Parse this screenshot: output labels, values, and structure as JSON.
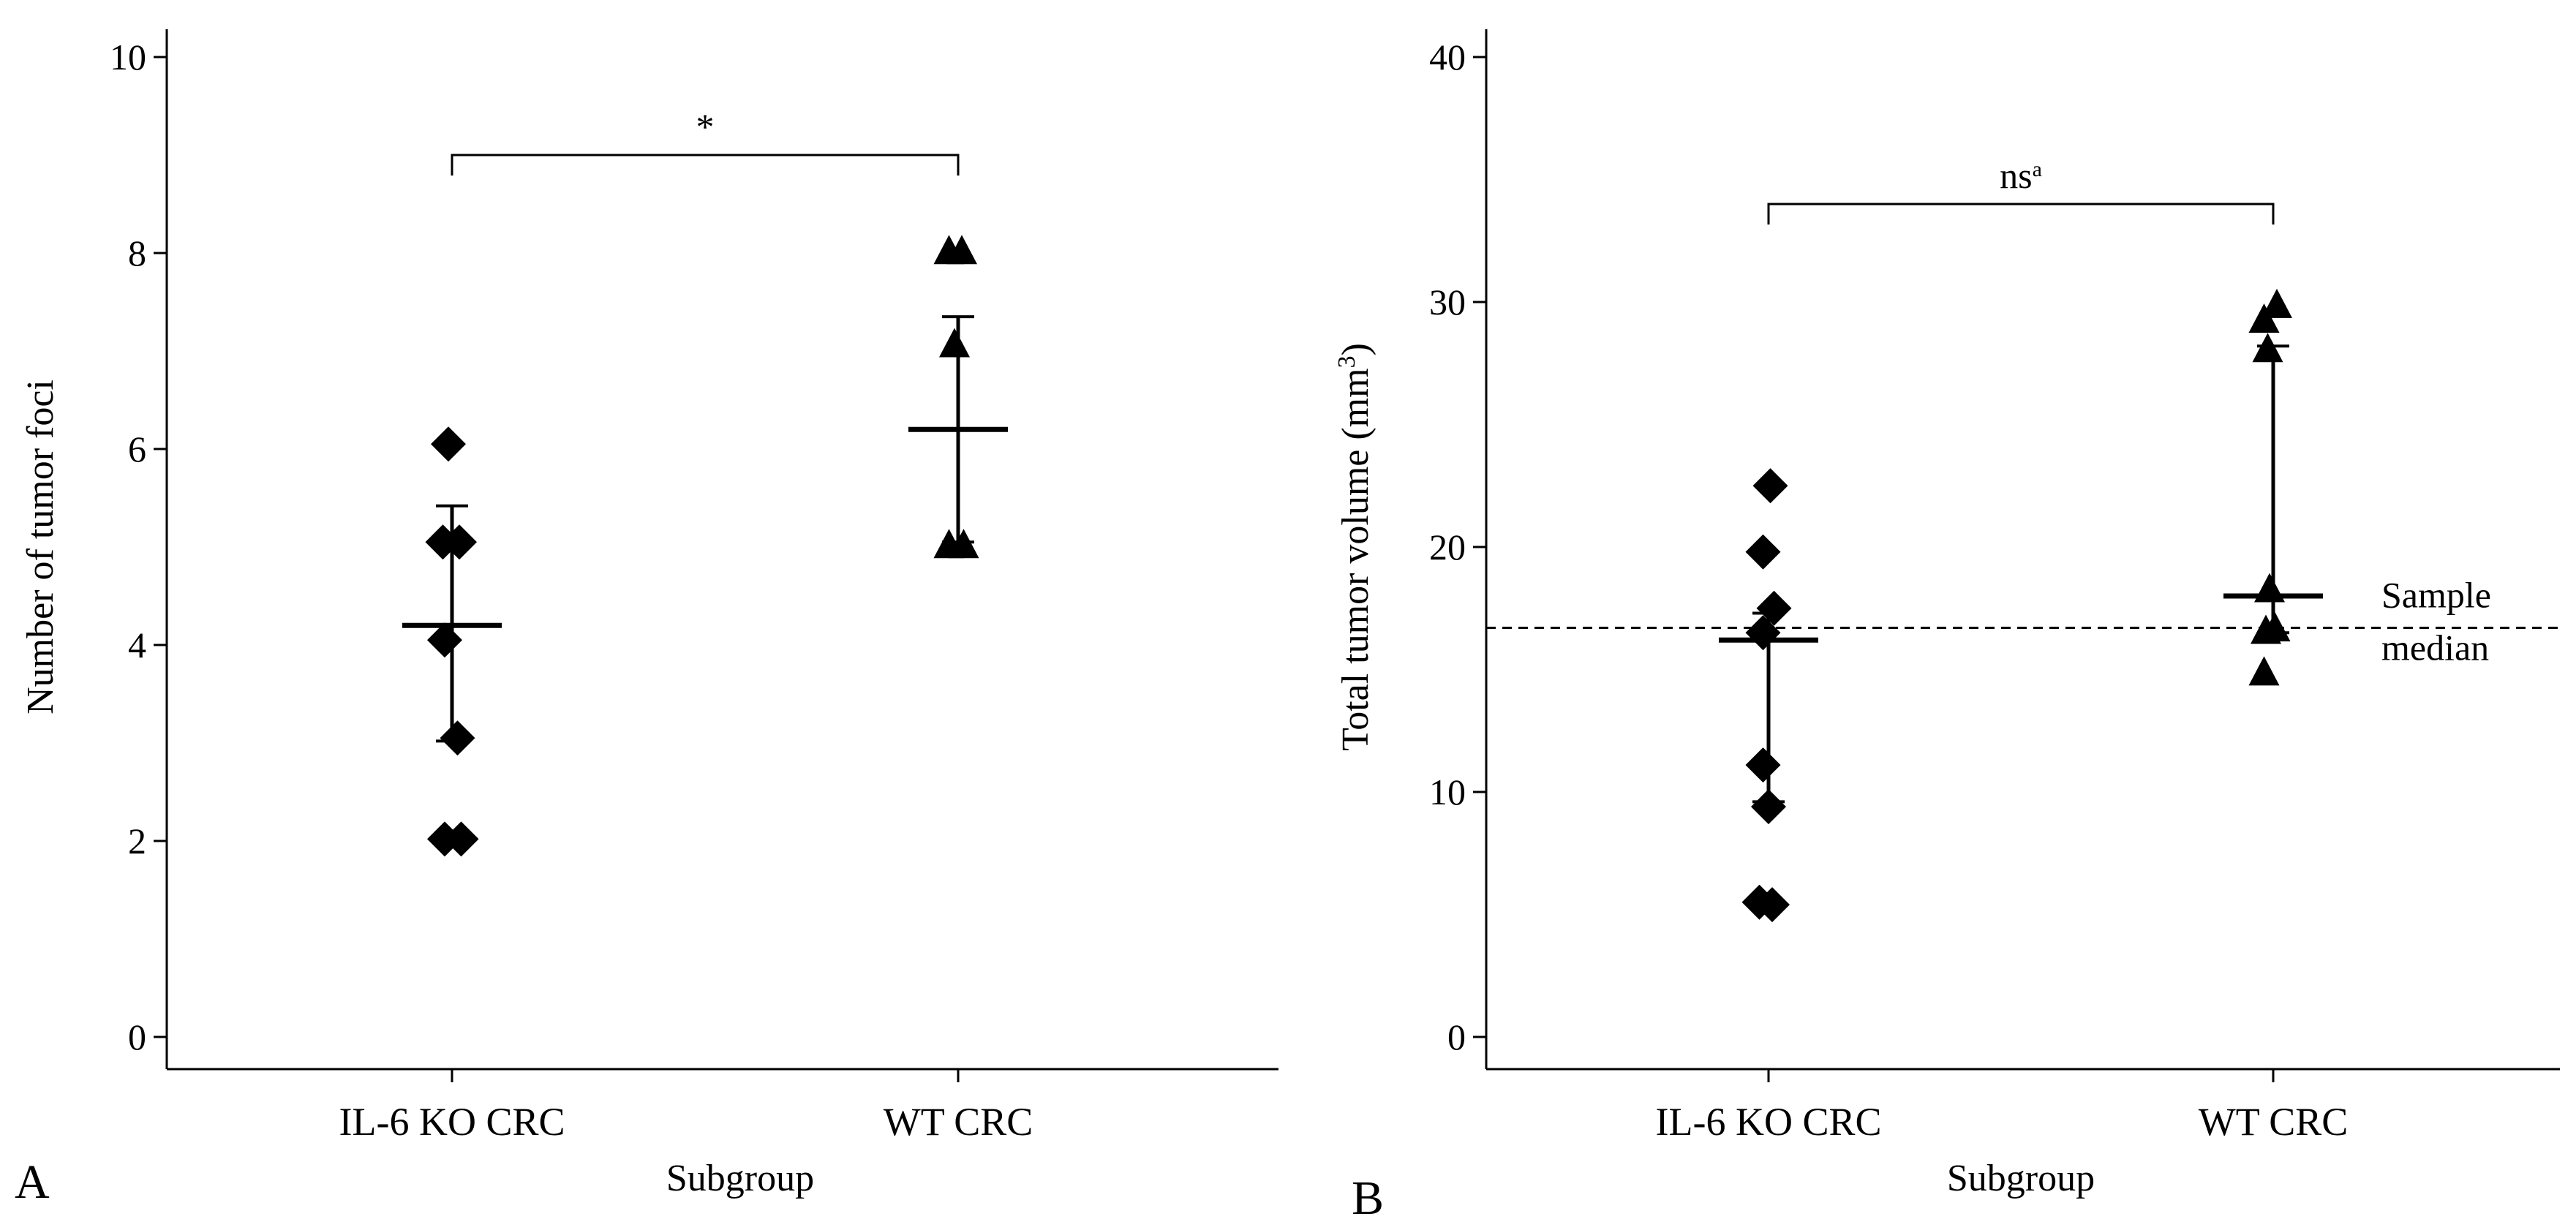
{
  "chart_data": [
    {
      "type": "scatter",
      "panel_label": "A",
      "xlabel": "Subgroup",
      "ylabel": "Number of tumor foci",
      "categories": [
        "IL-6 KO CRC",
        "WT CRC"
      ],
      "ylim": [
        0,
        10
      ],
      "yticks": [
        0,
        2,
        4,
        6,
        8,
        10
      ],
      "series": [
        {
          "name": "IL-6 KO CRC",
          "marker": "diamond",
          "points": [
            {
              "x": -0.02,
              "y": 6.05
            },
            {
              "x": -0.05,
              "y": 5.05
            },
            {
              "x": 0.04,
              "y": 5.05
            },
            {
              "x": -0.04,
              "y": 4.05
            },
            {
              "x": 0.03,
              "y": 3.05
            },
            {
              "x": -0.04,
              "y": 2.02
            },
            {
              "x": 0.05,
              "y": 2.02
            }
          ],
          "mean": 4.2,
          "error_low": 3.02,
          "error_high": 5.42
        },
        {
          "name": "WT CRC",
          "marker": "triangle",
          "points": [
            {
              "x": -0.05,
              "y": 8.0
            },
            {
              "x": 0.02,
              "y": 8.0
            },
            {
              "x": -0.02,
              "y": 7.05
            },
            {
              "x": -0.05,
              "y": 5.0
            },
            {
              "x": 0.03,
              "y": 5.0
            }
          ],
          "mean": 6.2,
          "error_low": 5.05,
          "error_high": 7.35
        }
      ],
      "significance": {
        "label": "*",
        "y": 9.0
      }
    },
    {
      "type": "scatter",
      "panel_label": "B",
      "xlabel": "Subgroup",
      "ylabel_main": "Total tumor volume (mm",
      "ylabel_sup": "3",
      "ylabel_end": ")",
      "categories": [
        "IL-6 KO CRC",
        "WT CRC"
      ],
      "ylim": [
        0,
        40
      ],
      "yticks": [
        0,
        10,
        20,
        30,
        40
      ],
      "series": [
        {
          "name": "IL-6 KO CRC",
          "marker": "diamond",
          "points": [
            {
              "x": 0.01,
              "y": 22.5
            },
            {
              "x": -0.03,
              "y": 19.8
            },
            {
              "x": 0.03,
              "y": 17.5
            },
            {
              "x": -0.03,
              "y": 16.5
            },
            {
              "x": -0.03,
              "y": 11.1
            },
            {
              "x": 0.0,
              "y": 9.4
            },
            {
              "x": -0.05,
              "y": 5.5
            },
            {
              "x": 0.02,
              "y": 5.4
            }
          ],
          "median": 16.2,
          "error_low": 9.6,
          "error_high": 17.3
        },
        {
          "name": "WT CRC",
          "marker": "triangle",
          "points": [
            {
              "x": -0.05,
              "y": 29.2
            },
            {
              "x": 0.02,
              "y": 29.8
            },
            {
              "x": -0.03,
              "y": 28.0
            },
            {
              "x": -0.02,
              "y": 18.2
            },
            {
              "x": -0.04,
              "y": 16.5
            },
            {
              "x": 0.01,
              "y": 16.6
            },
            {
              "x": -0.05,
              "y": 14.8
            }
          ],
          "median": 18.0,
          "error_low": 16.5,
          "error_high": 28.2
        }
      ],
      "significance": {
        "label": "ns",
        "superscript": "a",
        "y": 34.0
      },
      "reference_line": {
        "label_line1": "Sample",
        "label_line2": "median",
        "y": 16.7,
        "style": "dashed"
      }
    }
  ]
}
